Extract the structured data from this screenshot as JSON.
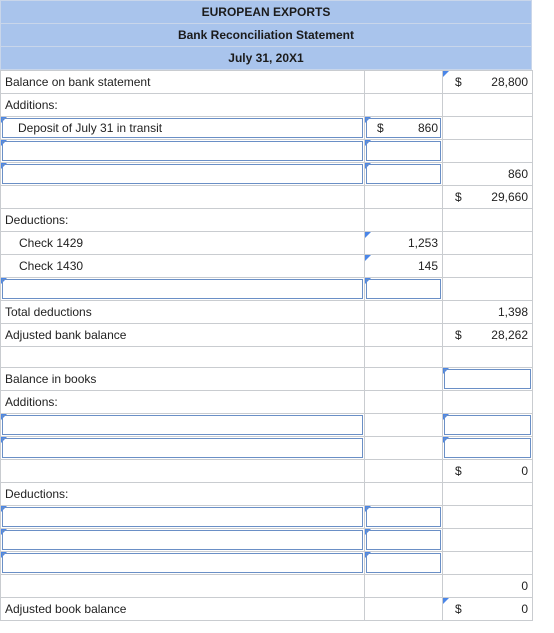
{
  "header": {
    "company": "EUROPEAN EXPORTS",
    "title": "Bank Reconciliation Statement",
    "date": "July 31, 20X1"
  },
  "bank": {
    "balance_label": "Balance on bank statement",
    "balance_dollar": "$",
    "balance_value": "28,800",
    "additions_label": "Additions:",
    "deposit_label": "Deposit of July 31 in transit",
    "deposit_dollar": "$",
    "deposit_value": "860",
    "additions_total": "860",
    "subtotal_dollar": "$",
    "subtotal_value": "29,660",
    "deductions_label": "Deductions:",
    "check1_label": "Check 1429",
    "check1_value": "1,253",
    "check2_label": "Check 1430",
    "check2_value": "145",
    "total_deductions_label": "Total deductions",
    "total_deductions_value": "1,398",
    "adjusted_label": "Adjusted bank balance",
    "adjusted_dollar": "$",
    "adjusted_value": "28,262"
  },
  "books": {
    "balance_label": "Balance in books",
    "additions_label": "Additions:",
    "subtotal_dollar": "$",
    "subtotal_value": "0",
    "deductions_label": "Deductions:",
    "total_deductions_value": "0",
    "adjusted_label": "Adjusted book balance",
    "adjusted_dollar": "$",
    "adjusted_value": "0"
  }
}
